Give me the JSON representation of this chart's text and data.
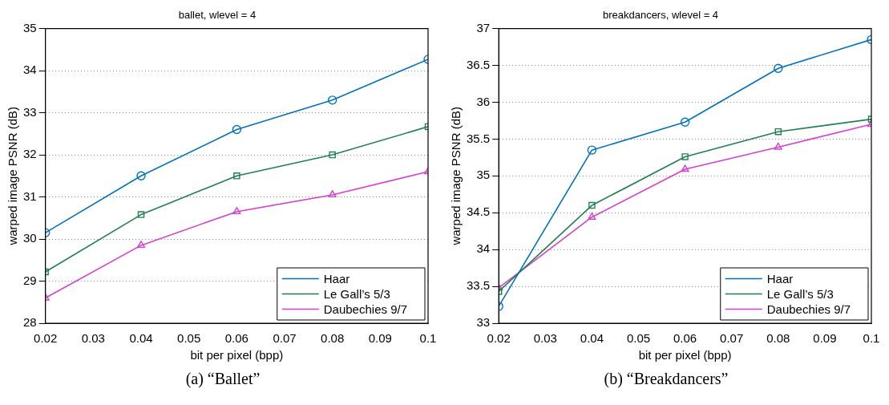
{
  "chart_data": [
    {
      "type": "line",
      "title": "ballet, wlevel = 4",
      "xlabel": "bit per pixel (bpp)",
      "ylabel": "warped image PSNR (dB)",
      "x": [
        0.02,
        0.04,
        0.06,
        0.08,
        0.1
      ],
      "xlim": [
        0.02,
        0.1
      ],
      "xticks": [
        0.02,
        0.03,
        0.04,
        0.05,
        0.06,
        0.07,
        0.08,
        0.09,
        0.1
      ],
      "ylim": [
        28,
        35
      ],
      "yticks": [
        28,
        29,
        30,
        31,
        32,
        33,
        34,
        35
      ],
      "grid": "y",
      "legend": "bottom right",
      "line_style": "solid",
      "annotations": [
        "(a) “Ballet”"
      ],
      "series": [
        {
          "name": "Haar",
          "color": "#0072bd",
          "marker": "circle",
          "values": [
            30.15,
            31.5,
            32.6,
            33.3,
            34.27
          ]
        },
        {
          "name": "Le Gall’s 5/3",
          "color": "#208050",
          "marker": "square",
          "values": [
            29.22,
            30.58,
            31.5,
            32.0,
            32.67
          ]
        },
        {
          "name": "Daubechies 9/7",
          "color": "#d63fcf",
          "marker": "triangle",
          "values": [
            28.6,
            29.85,
            30.65,
            31.05,
            31.6
          ]
        }
      ]
    },
    {
      "type": "line",
      "title": "breakdancers, wlevel = 4",
      "xlabel": "bit per pixel (bpp)",
      "ylabel": "warped image PSNR (dB)",
      "x": [
        0.02,
        0.04,
        0.06,
        0.08,
        0.1
      ],
      "xlim": [
        0.02,
        0.1
      ],
      "xticks": [
        0.02,
        0.03,
        0.04,
        0.05,
        0.06,
        0.07,
        0.08,
        0.09,
        0.1
      ],
      "ylim": [
        33,
        37
      ],
      "yticks": [
        33,
        33.5,
        34,
        34.5,
        35,
        35.5,
        36,
        36.5,
        37
      ],
      "grid": "y",
      "legend": "bottom right",
      "line_style": "solid",
      "annotations": [
        "(b) “Breakdancers”"
      ],
      "series": [
        {
          "name": "Haar",
          "color": "#0072bd",
          "marker": "circle",
          "values": [
            33.23,
            35.35,
            35.73,
            36.46,
            36.85
          ]
        },
        {
          "name": "Le Gall’s 5/3",
          "color": "#208050",
          "marker": "square",
          "values": [
            33.43,
            34.6,
            35.26,
            35.6,
            35.77
          ]
        },
        {
          "name": "Daubechies 9/7",
          "color": "#d63fcf",
          "marker": "triangle",
          "values": [
            33.48,
            34.44,
            35.09,
            35.39,
            35.7
          ]
        }
      ]
    }
  ]
}
